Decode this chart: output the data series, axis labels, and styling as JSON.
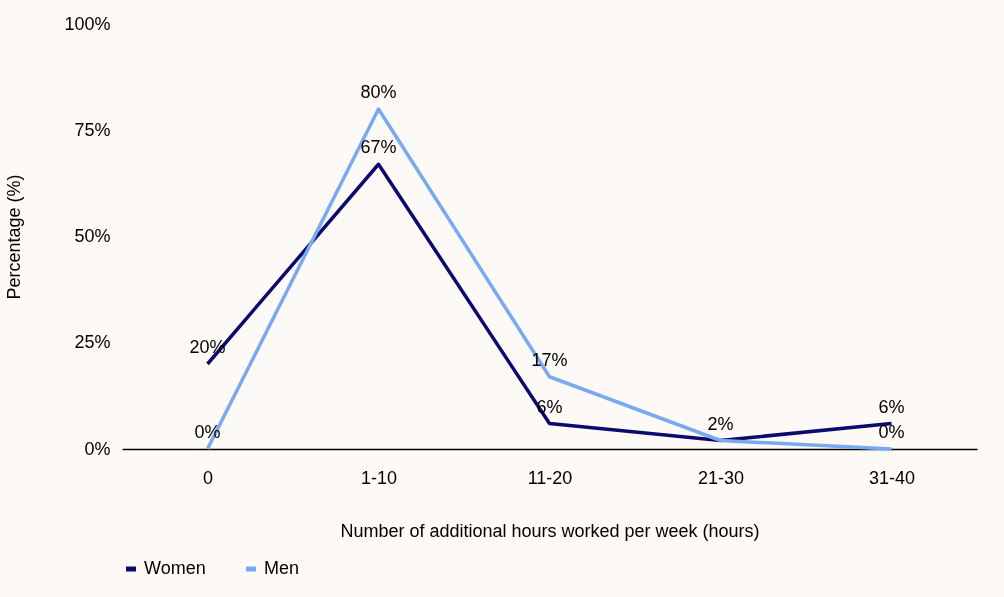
{
  "chart_data": {
    "type": "line",
    "xlabel": "Number of additional hours worked per week (hours)",
    "ylabel": "Percentage (%)",
    "categories": [
      "0",
      "1-10",
      "11-20",
      "21-30",
      "31-40"
    ],
    "series": [
      {
        "name": "Women",
        "color": "#0d0a6e",
        "values": [
          20,
          67,
          6,
          2,
          6
        ],
        "value_labels": [
          "20%",
          "67%",
          "6%",
          null,
          "6%"
        ]
      },
      {
        "name": "Men",
        "color": "#78aaf0",
        "values": [
          0,
          80,
          17,
          2,
          0
        ],
        "value_labels": [
          "0%",
          "80%",
          "17%",
          "2%",
          "0%"
        ]
      }
    ],
    "ylim": [
      0,
      100
    ],
    "yticks": [
      {
        "value": 0,
        "label": "0%"
      },
      {
        "value": 25,
        "label": "25%"
      },
      {
        "value": 50,
        "label": "50%"
      },
      {
        "value": 75,
        "label": "75%"
      },
      {
        "value": 100,
        "label": "100%"
      }
    ],
    "grid": false,
    "legend": "bottom",
    "marker": "none",
    "line_style": "solid"
  }
}
